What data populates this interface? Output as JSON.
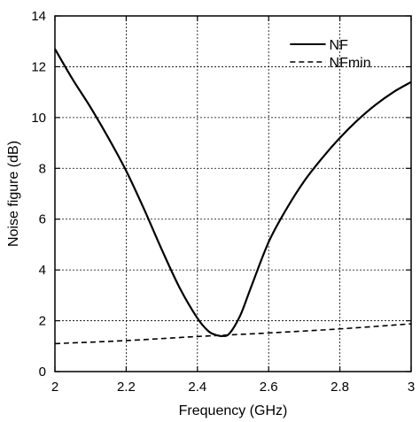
{
  "chart_data": {
    "type": "line",
    "title": "",
    "xlabel": "Frequency (GHz)",
    "ylabel": "Noise figure (dB)",
    "xlim": [
      2,
      3
    ],
    "ylim": [
      0,
      14
    ],
    "xticks": [
      "2",
      "2.2",
      "2.4",
      "2.6",
      "2.8",
      "3"
    ],
    "yticks": [
      "0",
      "2",
      "4",
      "6",
      "8",
      "10",
      "12",
      "14"
    ],
    "grid": true,
    "legend_position": "top-right",
    "series": [
      {
        "name": "NF",
        "style": "solid",
        "color": "#000000",
        "x": [
          2.0,
          2.05,
          2.1,
          2.15,
          2.2,
          2.25,
          2.3,
          2.35,
          2.4,
          2.43,
          2.45,
          2.47,
          2.49,
          2.52,
          2.55,
          2.6,
          2.65,
          2.7,
          2.75,
          2.8,
          2.85,
          2.9,
          2.95,
          3.0
        ],
        "y": [
          12.7,
          11.5,
          10.4,
          9.2,
          7.9,
          6.4,
          4.8,
          3.3,
          2.1,
          1.6,
          1.45,
          1.4,
          1.5,
          2.2,
          3.3,
          5.1,
          6.4,
          7.5,
          8.4,
          9.2,
          9.9,
          10.5,
          11.0,
          11.4
        ]
      },
      {
        "name": "NFmin",
        "style": "dashed",
        "color": "#000000",
        "x": [
          2.0,
          2.2,
          2.4,
          2.6,
          2.8,
          3.0
        ],
        "y": [
          1.1,
          1.22,
          1.38,
          1.52,
          1.68,
          1.88
        ]
      }
    ]
  }
}
